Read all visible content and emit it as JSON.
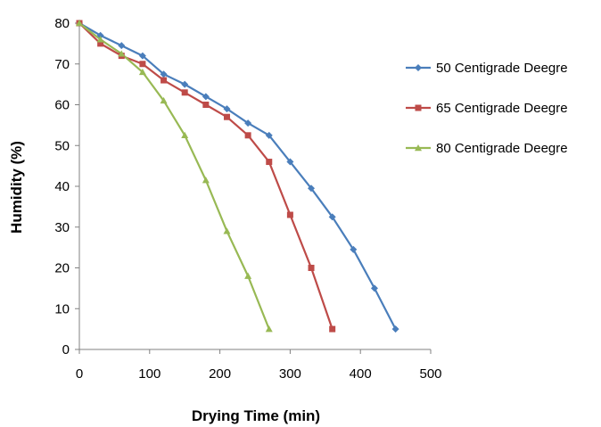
{
  "chart_data": {
    "type": "line",
    "title": "",
    "xlabel": "Drying Time (min)",
    "ylabel": "Humidity (%)",
    "xlim": [
      0,
      500
    ],
    "ylim": [
      0,
      80
    ],
    "xticks": [
      0,
      100,
      200,
      300,
      400,
      500
    ],
    "yticks": [
      0,
      10,
      20,
      30,
      40,
      50,
      60,
      70,
      80
    ],
    "grid": false,
    "legend_position": "right",
    "series": [
      {
        "name": "50 Centigrade Deegre",
        "color": "#4A7EBB",
        "marker": "diamond",
        "x": [
          0,
          30,
          60,
          90,
          120,
          150,
          180,
          210,
          240,
          270,
          300,
          330,
          360,
          390,
          420,
          450
        ],
        "y": [
          80,
          77,
          74.5,
          72,
          67.5,
          65,
          62,
          59,
          55.5,
          52.5,
          46,
          39.5,
          32.5,
          24.5,
          15,
          5
        ]
      },
      {
        "name": "65 Centigrade Deegre",
        "color": "#BE4B48",
        "marker": "square",
        "x": [
          0,
          30,
          60,
          90,
          120,
          150,
          180,
          210,
          240,
          270,
          300,
          330,
          360
        ],
        "y": [
          80,
          75,
          72,
          70,
          66,
          63,
          60,
          57,
          52.5,
          46,
          33,
          20,
          5
        ]
      },
      {
        "name": "80 Centigrade Deegre",
        "color": "#98B954",
        "marker": "triangle",
        "x": [
          0,
          30,
          60,
          90,
          120,
          150,
          180,
          210,
          240,
          270
        ],
        "y": [
          80,
          76,
          72.5,
          68,
          61,
          52.5,
          41.5,
          29,
          18,
          5
        ]
      }
    ]
  }
}
